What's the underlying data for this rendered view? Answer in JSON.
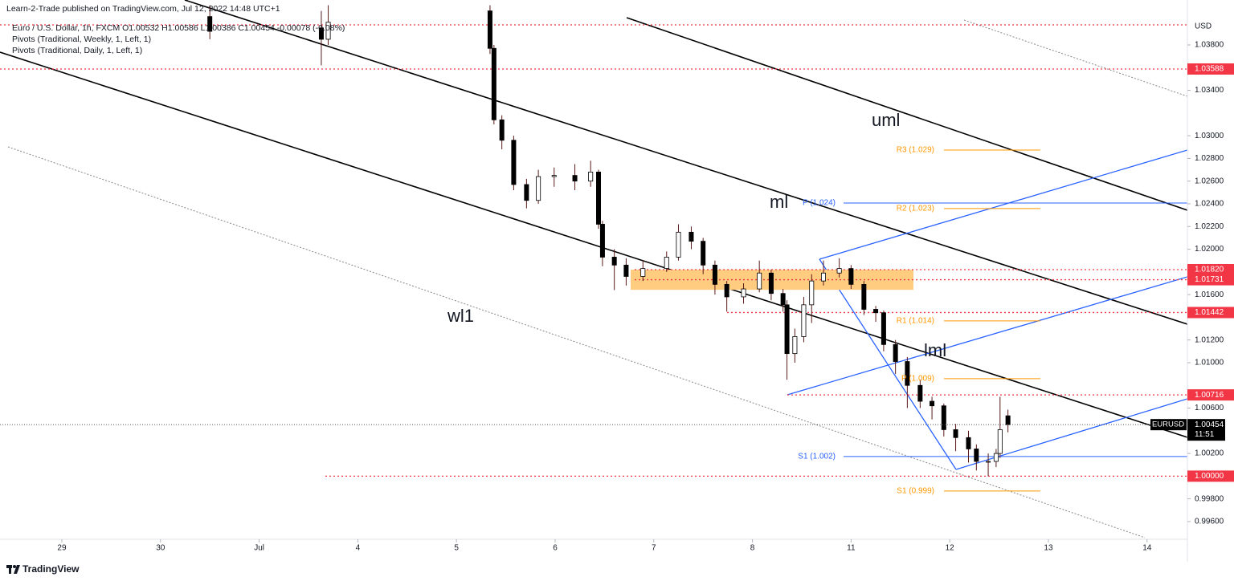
{
  "header": {
    "published": "Learn-2-Trade published on TradingView.com, Jul 12, 2022 14:48 UTC+1",
    "symbol_line": "Euro / U.S. Dollar, 1h, FXCM  O1.00532  H1.00586  L1.00386  C1.00454  -0.00078 (-0.08%)",
    "indicators": [
      "Pivots (Traditional, Weekly, 1, Left, 1)",
      "Pivots (Traditional, Daily, 1, Left, 1)"
    ]
  },
  "footer": "TradingView",
  "chart_data": {
    "type": "candlestick",
    "currency": "USD",
    "x": [
      1.5,
      2.63,
      2.7,
      4.34,
      4.38,
      4.46,
      4.58,
      4.71,
      4.83,
      4.99,
      5.2,
      5.36,
      5.44,
      5.48,
      5.6,
      5.72,
      5.89,
      6.13,
      6.25,
      6.38,
      6.5,
      6.62,
      6.74,
      6.91,
      7.07,
      7.19,
      7.31,
      7.35,
      7.43,
      7.52,
      7.6,
      7.72,
      7.88,
      8.0,
      8.13,
      8.25,
      8.33,
      8.45,
      8.57,
      8.7,
      8.82,
      8.94,
      9.06,
      9.19,
      9.27,
      9.39,
      9.47,
      9.51,
      9.59
    ],
    "open": [
      1.0405,
      1.0395,
      1.0385,
      1.041,
      1.0377,
      1.0314,
      1.0296,
      1.0257,
      1.0243,
      1.0264,
      1.0265,
      1.026,
      1.0268,
      1.0222,
      1.0193,
      1.0186,
      1.0176,
      1.0183,
      1.0193,
      1.0215,
      1.0207,
      1.0186,
      1.0169,
      1.0158,
      1.0165,
      1.0179,
      1.0161,
      1.0151,
      1.0108,
      1.0123,
      1.0151,
      1.0172,
      1.0179,
      1.0183,
      1.0169,
      1.0147,
      1.0144,
      1.0116,
      1.0101,
      1.008,
      1.0066,
      1.0062,
      1.0041,
      1.0034,
      1.0024,
      1.0013,
      1.0013,
      1.002,
      1.00532
    ],
    "high": [
      1.0415,
      1.041,
      1.0415,
      1.0415,
      1.038,
      1.0318,
      1.03,
      1.0262,
      1.027,
      1.0272,
      1.0275,
      1.0278,
      1.027,
      1.0225,
      1.02,
      1.0192,
      1.019,
      1.0198,
      1.0222,
      1.022,
      1.021,
      1.019,
      1.0172,
      1.017,
      1.019,
      1.0182,
      1.0165,
      1.0155,
      1.013,
      1.0158,
      1.0178,
      1.019,
      1.0192,
      1.0186,
      1.0172,
      1.015,
      1.0146,
      1.012,
      1.0105,
      1.0085,
      1.007,
      1.0064,
      1.0046,
      1.004,
      1.0028,
      1.002,
      1.0024,
      1.007,
      1.00586
    ],
    "low": [
      1.0385,
      1.0362,
      1.038,
      1.0372,
      1.031,
      1.0288,
      1.0252,
      1.0236,
      1.024,
      1.0255,
      1.0252,
      1.0255,
      1.0218,
      1.0185,
      1.0164,
      1.0168,
      1.0172,
      1.018,
      1.019,
      1.02,
      1.0178,
      1.016,
      1.0145,
      1.0152,
      1.0162,
      1.0155,
      1.0145,
      1.0085,
      1.01,
      1.0118,
      1.0135,
      1.0168,
      1.0175,
      1.0165,
      1.0142,
      1.0136,
      1.011,
      1.009,
      1.006,
      1.006,
      1.005,
      1.0035,
      1.0022,
      1.0012,
      1.0005,
      1.0,
      1.0008,
      1.0016,
      1.00386
    ],
    "close": [
      1.0392,
      1.0385,
      1.04,
      1.0377,
      1.0314,
      1.0296,
      1.0257,
      1.0243,
      1.0264,
      1.0265,
      1.026,
      1.0268,
      1.0222,
      1.0193,
      1.0186,
      1.0176,
      1.0183,
      1.0193,
      1.0215,
      1.0207,
      1.0186,
      1.0169,
      1.0158,
      1.0165,
      1.0179,
      1.0161,
      1.0151,
      1.0108,
      1.0123,
      1.0151,
      1.0172,
      1.0179,
      1.0183,
      1.0169,
      1.0147,
      1.0144,
      1.0116,
      1.0101,
      1.008,
      1.0066,
      1.0062,
      1.0041,
      1.0034,
      1.0024,
      1.0013,
      1.0013,
      1.002,
      1.0041,
      1.00454
    ],
    "up_color": "#ffffff",
    "down_color": "#000000",
    "xlim": [
      -0.627,
      11.409
    ],
    "xticks": [
      {
        "value": 0,
        "label": "29"
      },
      {
        "value": 1,
        "label": "30"
      },
      {
        "value": 2,
        "label": "Jul"
      },
      {
        "value": 3,
        "label": "4"
      },
      {
        "value": 4,
        "label": "5"
      },
      {
        "value": 5,
        "label": "6"
      },
      {
        "value": 6,
        "label": "7"
      },
      {
        "value": 7,
        "label": "8"
      },
      {
        "value": 8,
        "label": "11"
      },
      {
        "value": 9,
        "label": "12"
      },
      {
        "value": 10,
        "label": "13"
      },
      {
        "value": 11,
        "label": "14"
      }
    ],
    "ylim": [
      0.99444,
      1.04196
    ],
    "yticks": [
      {
        "value": 1.038,
        "label": "1.03800"
      },
      {
        "value": 1.034,
        "label": "1.03400"
      },
      {
        "value": 1.03,
        "label": "1.03000"
      },
      {
        "value": 1.028,
        "label": "1.02800"
      },
      {
        "value": 1.026,
        "label": "1.02600"
      },
      {
        "value": 1.024,
        "label": "1.02400"
      },
      {
        "value": 1.022,
        "label": "1.02200"
      },
      {
        "value": 1.02,
        "label": "1.02000"
      },
      {
        "value": 1.016,
        "label": "1.01600"
      },
      {
        "value": 1.012,
        "label": "1.01200"
      },
      {
        "value": 1.01,
        "label": "1.01000"
      },
      {
        "value": 1.006,
        "label": "1.00600"
      },
      {
        "value": 1.002,
        "label": "1.00200"
      },
      {
        "value": 0.998,
        "label": "0.99800"
      },
      {
        "value": 0.996,
        "label": "0.99600"
      }
    ],
    "levels": [
      1.03977,
      1.03588,
      1.0182,
      1.01731,
      1.01442,
      1.00716,
      1.0
    ],
    "level_labels": [
      null,
      "1.03588",
      "1.01820",
      "1.01731",
      "1.01442",
      "1.00716",
      "1.00000"
    ],
    "level_color": "#f23645",
    "zone": [
      1.01731,
      1.0182
    ],
    "zone_color": "#ffcc80",
    "pivots": [
      {
        "label": "R3 (1.029)",
        "value": 1.02874,
        "color": "#ff9800",
        "period": "daily"
      },
      {
        "label": "R2 (1.023)",
        "value": 1.02358,
        "color": "#ff9800",
        "period": "daily"
      },
      {
        "label": "R1 (1.014)",
        "value": 1.01368,
        "color": "#ff9800",
        "period": "daily"
      },
      {
        "label": "P (1.009)",
        "value": 1.00859,
        "color": "#ff9800",
        "period": "daily"
      },
      {
        "label": "S1 (0.999)",
        "value": 0.99869,
        "color": "#ff9800",
        "period": "daily"
      },
      {
        "label": "P (1.024)",
        "value": 1.02407,
        "color": "#2962ff",
        "period": "weekly"
      },
      {
        "label": "S1 (1.002)",
        "value": 1.00173,
        "color": "#2962ff",
        "period": "weekly"
      }
    ],
    "last": {
      "symbol": "EURUSD",
      "value": 1.00454,
      "label": "1.00454",
      "countdown": "11:51"
    },
    "annotations": [
      "uml",
      "ml",
      "lml",
      "wl1"
    ]
  }
}
